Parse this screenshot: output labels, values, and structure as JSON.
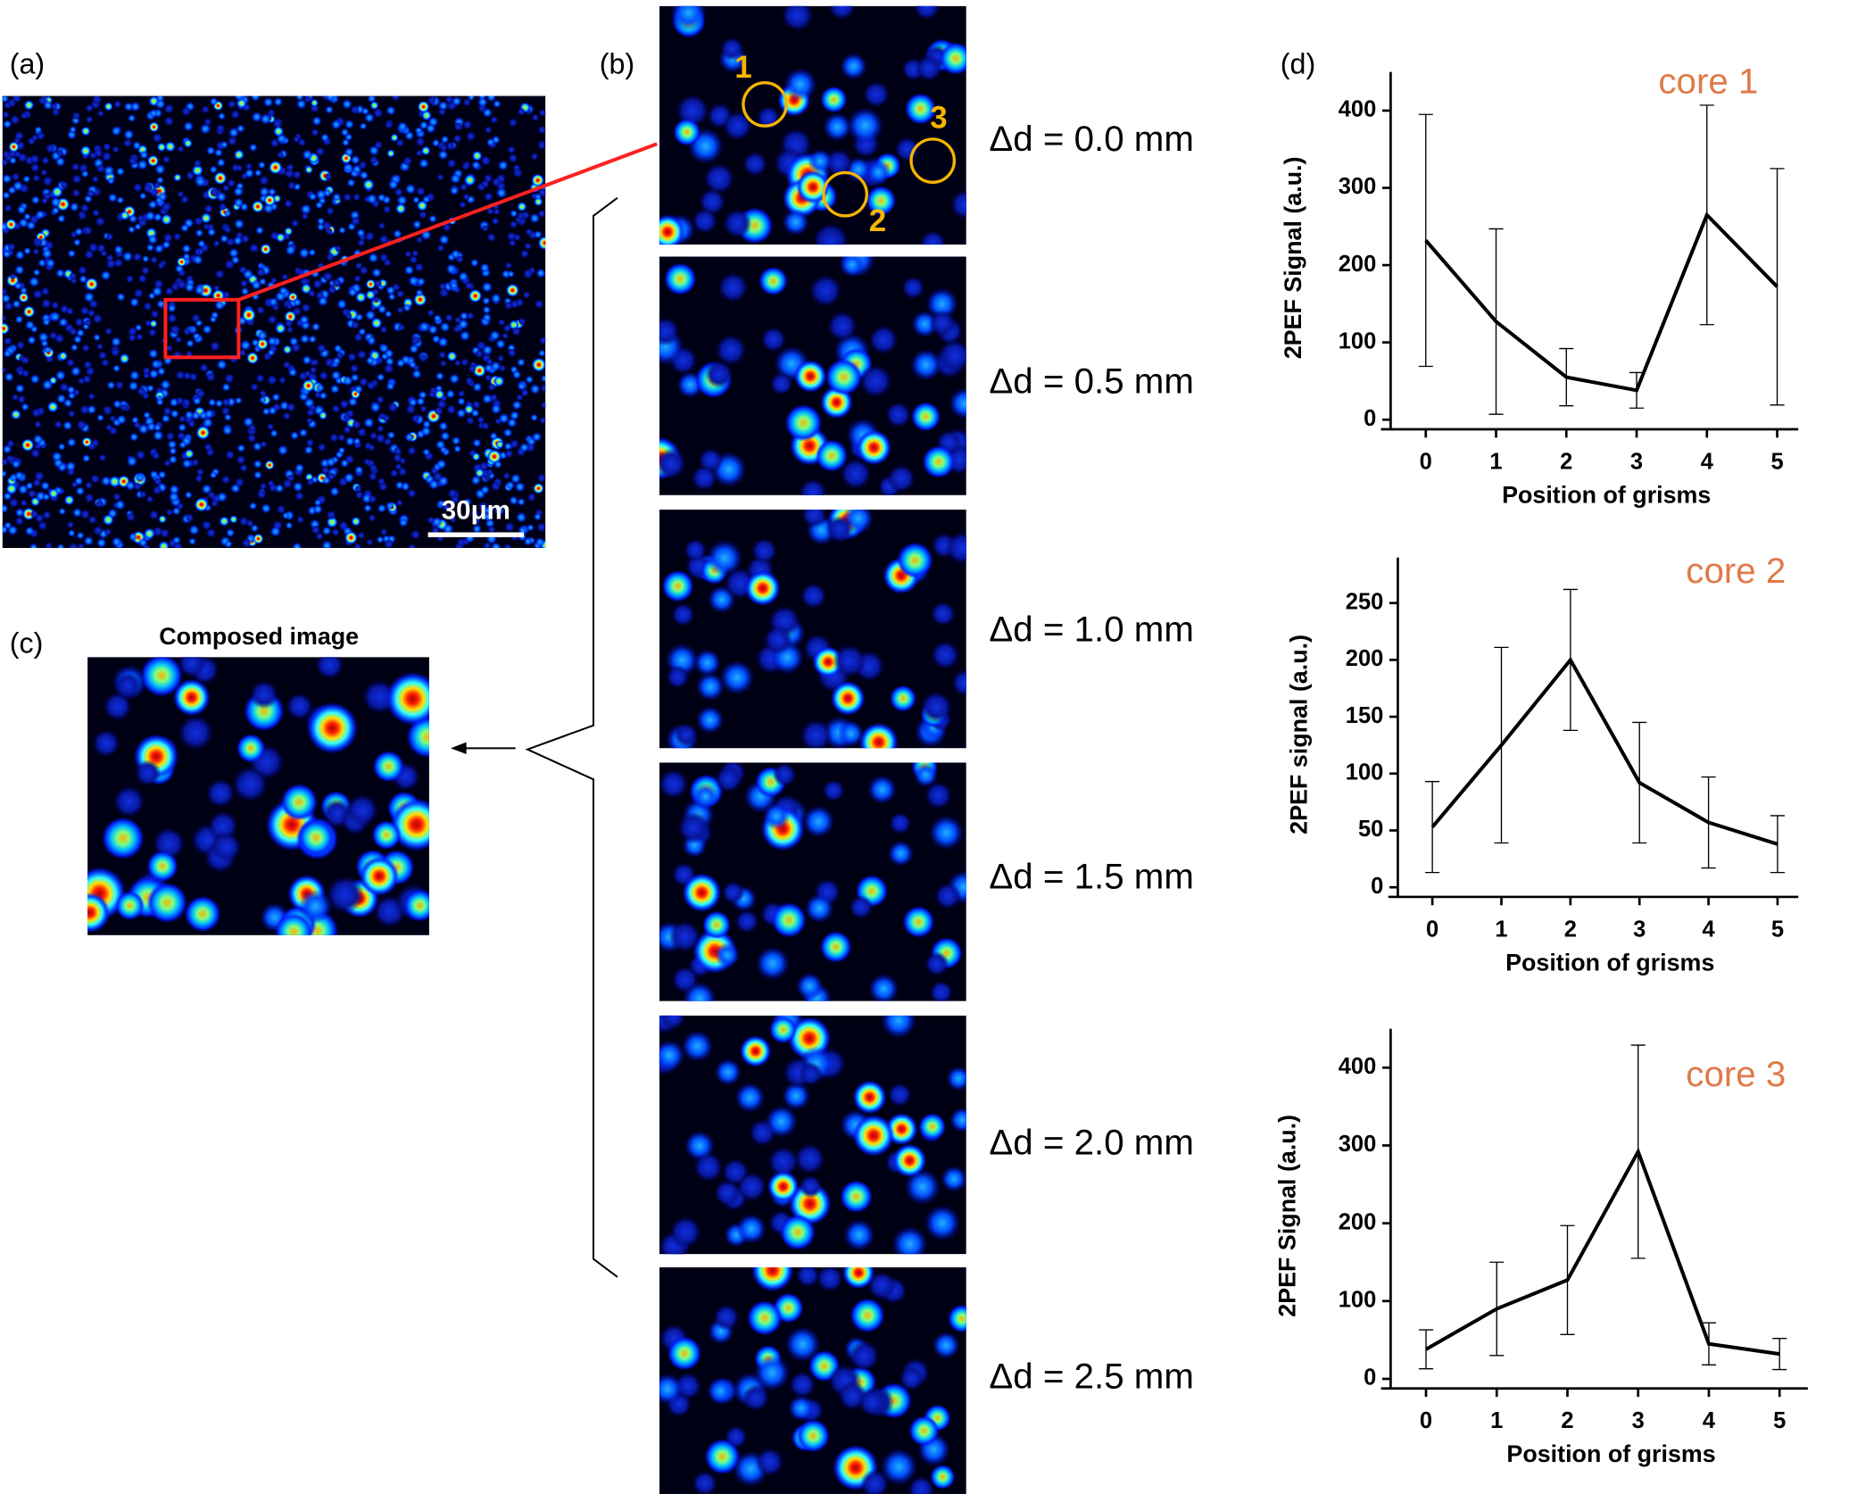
{
  "panel_labels": [
    "(a)",
    "(b)",
    "(c)",
    "(d)"
  ],
  "scale_bar": "30μm",
  "composed_title": "Composed image",
  "core_markers": [
    "1",
    "2",
    "3"
  ],
  "delay_labels": [
    "Δd = 0.0 mm",
    "Δd = 0.5 mm",
    "Δd = 1.0 mm",
    "Δd = 1.5 mm",
    "Δd = 2.0 mm",
    "Δd = 2.5 mm"
  ],
  "chart_data": [
    {
      "type": "line",
      "title": "core 1",
      "y_label": "2PEF Signal (a.u.)",
      "x_label": "Position of grisms",
      "x": [
        0,
        1,
        2,
        3,
        4,
        5
      ],
      "values": [
        232,
        127,
        55,
        38,
        265,
        172
      ],
      "errors": [
        163,
        120,
        37,
        23,
        142,
        153
      ],
      "color": "#000000",
      "title_color": "#e07a4a",
      "xlim": [
        -0.5,
        5.3
      ],
      "xticks": [
        0,
        1,
        2,
        3,
        4,
        5
      ],
      "ylim": [
        0,
        450
      ],
      "yticks": [
        0,
        100,
        200,
        300,
        400
      ]
    },
    {
      "type": "line",
      "title": "core 2",
      "y_label": "2PEF signal (a.u.)",
      "x_label": "Position of grisms",
      "x": [
        0,
        1,
        2,
        3,
        4,
        5
      ],
      "values": [
        53,
        125,
        200,
        92,
        57,
        38
      ],
      "errors": [
        40,
        86,
        62,
        53,
        40,
        25
      ],
      "color": "#000000",
      "title_color": "#e07a4a",
      "xlim": [
        -0.5,
        5.3
      ],
      "xticks": [
        0,
        1,
        2,
        3,
        4,
        5
      ],
      "ylim": [
        0,
        290
      ],
      "yticks": [
        0,
        50,
        100,
        150,
        200,
        250
      ]
    },
    {
      "type": "line",
      "title": "core 3",
      "y_label": "2PEF Signal (a.u.)",
      "x_label": "Position of grisms",
      "x": [
        0,
        1,
        2,
        3,
        4,
        5
      ],
      "values": [
        38,
        90,
        127,
        292,
        45,
        32
      ],
      "errors": [
        25,
        60,
        70,
        137,
        27,
        20
      ],
      "color": "#000000",
      "title_color": "#e07a4a",
      "xlim": [
        -0.5,
        5.4
      ],
      "xticks": [
        0,
        1,
        2,
        3,
        4,
        5
      ],
      "ylim": [
        0,
        450
      ],
      "yticks": [
        0,
        100,
        200,
        300,
        400
      ]
    }
  ]
}
